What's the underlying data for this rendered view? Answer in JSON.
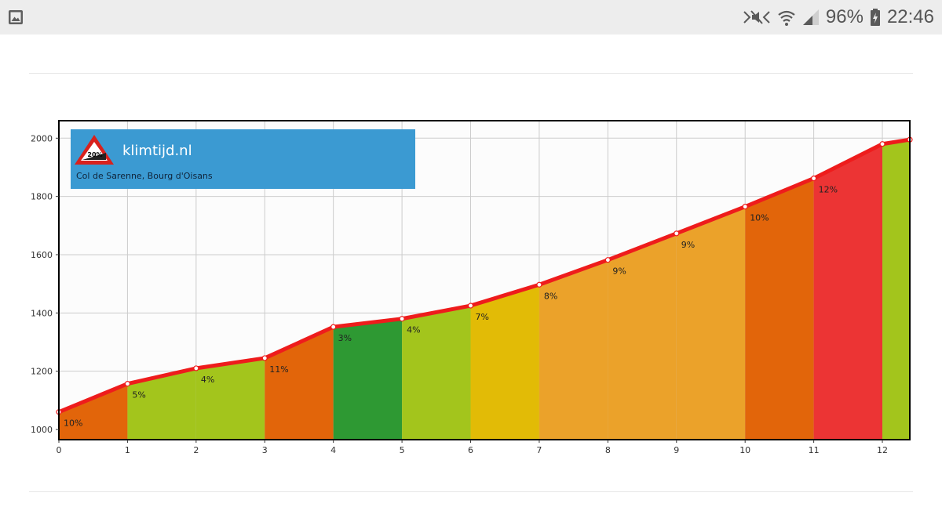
{
  "status_bar": {
    "battery": "96%",
    "time": "22:46",
    "icons": [
      "gallery-icon",
      "mute-icon",
      "wifi-icon",
      "signal-icon",
      "battery-charging-icon"
    ]
  },
  "colors": {
    "status_bar_bg": "#ededed",
    "profile_line": "#ee1c1c",
    "banner": "#3b9ad2"
  },
  "chart_data": {
    "type": "area",
    "title": "",
    "xlabel": "",
    "ylabel": "",
    "xlim": [
      0,
      12.4
    ],
    "ylim": [
      965,
      2060
    ],
    "x_ticks": [
      0,
      1,
      2,
      3,
      4,
      5,
      6,
      7,
      8,
      9,
      10,
      11,
      12
    ],
    "y_ticks": [
      1000,
      1200,
      1400,
      1600,
      1800,
      2000
    ],
    "grid": true,
    "points": [
      {
        "x": 0,
        "y": 1060
      },
      {
        "x": 1,
        "y": 1157
      },
      {
        "x": 2,
        "y": 1210
      },
      {
        "x": 3,
        "y": 1245
      },
      {
        "x": 4,
        "y": 1352
      },
      {
        "x": 5,
        "y": 1380
      },
      {
        "x": 6,
        "y": 1425
      },
      {
        "x": 7,
        "y": 1497
      },
      {
        "x": 8,
        "y": 1582
      },
      {
        "x": 9,
        "y": 1673
      },
      {
        "x": 10,
        "y": 1765
      },
      {
        "x": 11,
        "y": 1862
      },
      {
        "x": 12,
        "y": 1980
      },
      {
        "x": 12.4,
        "y": 1995
      }
    ],
    "segments": [
      {
        "label": "10%",
        "color": "#e2650a"
      },
      {
        "label": "5%",
        "color": "#a3c51c"
      },
      {
        "label": "4%",
        "color": "#a3c51c"
      },
      {
        "label": "11%",
        "color": "#e2650a"
      },
      {
        "label": "3%",
        "color": "#2e9933"
      },
      {
        "label": "4%",
        "color": "#a3c51c"
      },
      {
        "label": "7%",
        "color": "#e2bb06"
      },
      {
        "label": "8%",
        "color": "#eba22a"
      },
      {
        "label": "9%",
        "color": "#eba22a"
      },
      {
        "label": "9%",
        "color": "#eba22a"
      },
      {
        "label": "10%",
        "color": "#e2650a"
      },
      {
        "label": "12%",
        "color": "#ec3434"
      },
      {
        "label": "",
        "color": "#a3c51c"
      }
    ],
    "banner": {
      "title": "klimtijd.nl",
      "subtitle": "Col de Sarenne, Bourg d'Oisans",
      "sign_text": "20%"
    }
  }
}
